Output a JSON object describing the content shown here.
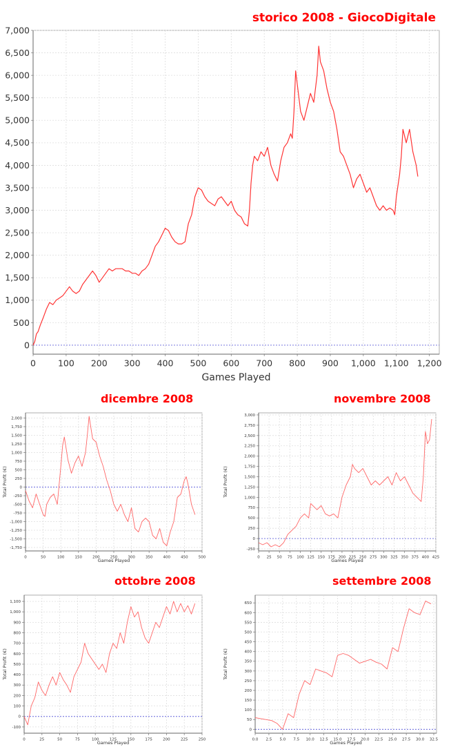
{
  "chart_data": [
    {
      "id": "main",
      "type": "line",
      "title": "storico 2008 - GiocoDigitale",
      "xlabel": "Games Played",
      "ylabel": "",
      "xlim": [
        0,
        1230
      ],
      "ylim": [
        -200,
        7000
      ],
      "xticks": [
        0,
        100,
        200,
        300,
        400,
        500,
        600,
        700,
        800,
        900,
        1000,
        1100,
        1200
      ],
      "xtick_labels": [
        "0",
        "100",
        "200",
        "300",
        "400",
        "500",
        "600",
        "700",
        "800",
        "900",
        "1,000",
        "1,100",
        "1,200"
      ],
      "yticks": [
        0,
        500,
        1000,
        1500,
        2000,
        2500,
        3000,
        3500,
        4000,
        4500,
        5000,
        5500,
        6000,
        6500,
        7000
      ],
      "ytick_labels": [
        "0",
        "500",
        "1,000",
        "1,500",
        "2,000",
        "2,500",
        "3,000",
        "3,500",
        "4,000",
        "4,500",
        "5,000",
        "5,500",
        "6,000",
        "6,500",
        "7,000"
      ],
      "series": [
        {
          "color": "#ff3333",
          "x": [
            0,
            5,
            10,
            15,
            22,
            30,
            40,
            50,
            60,
            70,
            80,
            90,
            100,
            110,
            120,
            130,
            140,
            150,
            160,
            170,
            180,
            190,
            200,
            210,
            220,
            230,
            240,
            250,
            260,
            270,
            280,
            290,
            300,
            310,
            320,
            330,
            340,
            350,
            360,
            370,
            380,
            390,
            400,
            410,
            420,
            430,
            440,
            450,
            460,
            470,
            480,
            490,
            500,
            510,
            520,
            530,
            540,
            550,
            560,
            570,
            580,
            590,
            600,
            610,
            620,
            630,
            640,
            650,
            655,
            660,
            665,
            670,
            680,
            690,
            700,
            710,
            720,
            730,
            740,
            750,
            760,
            770,
            780,
            785,
            790,
            795,
            800,
            810,
            820,
            830,
            840,
            850,
            860,
            865,
            870,
            880,
            890,
            900,
            910,
            920,
            930,
            940,
            950,
            960,
            970,
            980,
            990,
            1000,
            1010,
            1020,
            1030,
            1040,
            1050,
            1060,
            1070,
            1080,
            1090,
            1095,
            1100,
            1110,
            1115,
            1120,
            1130,
            1140,
            1150,
            1160,
            1165
          ],
          "y": [
            0,
            80,
            250,
            300,
            450,
            600,
            800,
            950,
            900,
            1000,
            1050,
            1100,
            1200,
            1300,
            1200,
            1150,
            1200,
            1350,
            1450,
            1550,
            1650,
            1550,
            1400,
            1500,
            1600,
            1700,
            1650,
            1700,
            1700,
            1700,
            1650,
            1650,
            1600,
            1600,
            1550,
            1650,
            1700,
            1800,
            2000,
            2200,
            2300,
            2450,
            2600,
            2550,
            2400,
            2300,
            2250,
            2250,
            2300,
            2700,
            2900,
            3300,
            3500,
            3450,
            3300,
            3200,
            3150,
            3100,
            3250,
            3300,
            3200,
            3100,
            3200,
            3000,
            2900,
            2850,
            2700,
            2650,
            3000,
            3600,
            4000,
            4200,
            4100,
            4300,
            4200,
            4400,
            4000,
            3800,
            3650,
            4100,
            4400,
            4500,
            4700,
            4600,
            5200,
            6100,
            5800,
            5200,
            5000,
            5300,
            5600,
            5400,
            6000,
            6650,
            6300,
            6100,
            5700,
            5400,
            5200,
            4800,
            4300,
            4200,
            4000,
            3800,
            3500,
            3700,
            3800,
            3600,
            3400,
            3500,
            3300,
            3100,
            3000,
            3100,
            3000,
            3050,
            3000,
            2900,
            3300,
            3800,
            4200,
            4800,
            4500,
            4800,
            4300,
            4000,
            3750
          ]
        }
      ]
    },
    {
      "id": "dicembre",
      "type": "line",
      "title": "dicembre 2008",
      "xlabel": "Games Played",
      "ylabel": "Total Profit (€)",
      "xlim": [
        0,
        500
      ],
      "ylim": [
        -1850,
        2150
      ],
      "xticks": [
        0,
        50,
        100,
        150,
        200,
        250,
        300,
        350,
        400,
        450,
        500
      ],
      "xtick_labels": [
        "0",
        "50",
        "100",
        "150",
        "200",
        "250",
        "300",
        "350",
        "400",
        "450",
        "500"
      ],
      "yticks": [
        -1750,
        -1500,
        -1250,
        -1000,
        -750,
        -500,
        -250,
        0,
        250,
        500,
        750,
        1000,
        1250,
        1500,
        1750,
        2000
      ],
      "ytick_labels": [
        "-1,750",
        "-1,500",
        "-1,250",
        "-1,000",
        "-750",
        "-500",
        "-250",
        "0",
        "250",
        "500",
        "750",
        "1,000",
        "1,250",
        "1,500",
        "1,750",
        "2,000"
      ],
      "series": [
        {
          "color": "#ff6666",
          "x": [
            0,
            10,
            20,
            30,
            40,
            50,
            55,
            60,
            70,
            80,
            90,
            100,
            105,
            110,
            120,
            130,
            140,
            150,
            160,
            170,
            175,
            180,
            190,
            200,
            210,
            220,
            230,
            240,
            250,
            260,
            270,
            280,
            290,
            300,
            310,
            320,
            330,
            340,
            350,
            360,
            370,
            380,
            390,
            400,
            410,
            420,
            430,
            440,
            450,
            455,
            460,
            470,
            480
          ],
          "y": [
            -100,
            -400,
            -600,
            -200,
            -500,
            -800,
            -850,
            -500,
            -300,
            -200,
            -500,
            600,
            1200,
            1450,
            800,
            400,
            700,
            900,
            600,
            1000,
            1500,
            2050,
            1400,
            1300,
            900,
            600,
            200,
            -100,
            -500,
            -700,
            -500,
            -800,
            -1000,
            -600,
            -1200,
            -1300,
            -1000,
            -900,
            -1000,
            -1400,
            -1500,
            -1200,
            -1600,
            -1700,
            -1300,
            -1000,
            -300,
            -200,
            200,
            300,
            100,
            -500,
            -800
          ]
        }
      ]
    },
    {
      "id": "novembre",
      "type": "line",
      "title": "novembre 2008",
      "xlabel": "Games Played",
      "ylabel": "Total Profit (€)",
      "xlim": [
        0,
        425
      ],
      "ylim": [
        -300,
        3050
      ],
      "xticks": [
        0,
        25,
        50,
        75,
        100,
        125,
        150,
        175,
        200,
        225,
        250,
        275,
        300,
        325,
        350,
        375,
        400,
        425
      ],
      "xtick_labels": [
        "0",
        "25",
        "50",
        "75",
        "100",
        "125",
        "150",
        "175",
        "200",
        "225",
        "250",
        "275",
        "300",
        "325",
        "350",
        "375",
        "400",
        "425"
      ],
      "yticks": [
        -250,
        0,
        250,
        500,
        750,
        1000,
        1250,
        1500,
        1750,
        2000,
        2250,
        2500,
        2750,
        3000
      ],
      "ytick_labels": [
        "-250",
        "0",
        "250",
        "500",
        "750",
        "1,000",
        "1,250",
        "1,500",
        "1,750",
        "2,000",
        "2,250",
        "2,500",
        "2,750",
        "3,000"
      ],
      "series": [
        {
          "color": "#ff6666",
          "x": [
            0,
            10,
            20,
            30,
            40,
            50,
            60,
            70,
            80,
            90,
            100,
            110,
            120,
            125,
            130,
            140,
            150,
            160,
            170,
            180,
            190,
            200,
            210,
            220,
            225,
            230,
            240,
            250,
            260,
            270,
            280,
            290,
            300,
            310,
            320,
            330,
            340,
            350,
            360,
            370,
            380,
            390,
            395,
            400,
            405,
            410,
            415
          ],
          "y": [
            -100,
            -150,
            -100,
            -200,
            -150,
            -200,
            -100,
            100,
            200,
            300,
            500,
            600,
            500,
            850,
            800,
            700,
            800,
            600,
            550,
            600,
            500,
            1000,
            1300,
            1500,
            1800,
            1700,
            1600,
            1700,
            1500,
            1300,
            1400,
            1300,
            1400,
            1500,
            1300,
            1600,
            1400,
            1500,
            1300,
            1100,
            1000,
            900,
            1500,
            2600,
            2300,
            2400,
            2900
          ]
        }
      ]
    },
    {
      "id": "ottobre",
      "type": "line",
      "title": "ottobre 2008",
      "xlabel": "Games Played",
      "ylabel": "Total Profit (€)",
      "xlim": [
        0,
        250
      ],
      "ylim": [
        -160,
        1160
      ],
      "xticks": [
        0,
        25,
        50,
        75,
        100,
        125,
        150,
        175,
        200,
        225,
        250
      ],
      "xtick_labels": [
        "0",
        "25",
        "50",
        "75",
        "100",
        "125",
        "150",
        "175",
        "200",
        "225",
        "250"
      ],
      "yticks": [
        -100,
        0,
        100,
        200,
        300,
        400,
        500,
        600,
        700,
        800,
        900,
        1000,
        1100
      ],
      "ytick_labels": [
        "-100",
        "0",
        "100",
        "200",
        "300",
        "400",
        "500",
        "600",
        "700",
        "800",
        "900",
        "1,000",
        "1,100"
      ],
      "series": [
        {
          "color": "#ff6666",
          "x": [
            0,
            5,
            10,
            15,
            20,
            25,
            30,
            35,
            40,
            45,
            50,
            55,
            60,
            65,
            70,
            75,
            80,
            85,
            90,
            95,
            100,
            105,
            110,
            115,
            120,
            125,
            130,
            135,
            140,
            145,
            150,
            155,
            160,
            165,
            170,
            175,
            180,
            185,
            190,
            195,
            200,
            205,
            210,
            215,
            220,
            225,
            230,
            235,
            240
          ],
          "y": [
            0,
            -80,
            100,
            180,
            330,
            250,
            200,
            300,
            380,
            300,
            420,
            350,
            300,
            230,
            380,
            450,
            520,
            700,
            600,
            550,
            500,
            450,
            500,
            420,
            600,
            700,
            650,
            800,
            700,
            900,
            1050,
            950,
            1000,
            850,
            750,
            700,
            800,
            900,
            850,
            950,
            1050,
            980,
            1100,
            1000,
            1080,
            1000,
            1060,
            980,
            1080
          ]
        }
      ]
    },
    {
      "id": "settembre",
      "type": "line",
      "title": "settembre 2008",
      "xlabel": "Games Played",
      "ylabel": "Total Profit (€)",
      "xlim": [
        0,
        33
      ],
      "ylim": [
        -20,
        690
      ],
      "xticks": [
        0,
        2.5,
        5,
        7.5,
        10,
        12.5,
        15,
        17.5,
        20,
        22.5,
        25,
        27.5,
        30,
        32.5
      ],
      "xtick_labels": [
        "0.0",
        "2.5",
        "5.0",
        "7.5",
        "10.0",
        "12.5",
        "15.0",
        "17.5",
        "20.0",
        "22.5",
        "25.0",
        "27.5",
        "30.0",
        "32.5"
      ],
      "yticks": [
        0,
        50,
        100,
        150,
        200,
        250,
        300,
        350,
        400,
        450,
        500,
        550,
        600,
        650
      ],
      "ytick_labels": [
        "0",
        "50",
        "100",
        "150",
        "200",
        "250",
        "300",
        "350",
        "400",
        "450",
        "500",
        "550",
        "600",
        "650"
      ],
      "series": [
        {
          "color": "#ff6666",
          "x": [
            0,
            1,
            2,
            3,
            4,
            5,
            6,
            7,
            8,
            9,
            10,
            11,
            12,
            13,
            14,
            15,
            16,
            17,
            18,
            19,
            20,
            21,
            22,
            23,
            24,
            25,
            26,
            27,
            28,
            29,
            30,
            31,
            32
          ],
          "y": [
            60,
            55,
            50,
            45,
            30,
            0,
            80,
            60,
            180,
            250,
            230,
            310,
            300,
            290,
            270,
            380,
            390,
            380,
            360,
            340,
            350,
            360,
            345,
            335,
            310,
            420,
            400,
            520,
            620,
            600,
            590,
            660,
            645
          ]
        }
      ]
    }
  ]
}
